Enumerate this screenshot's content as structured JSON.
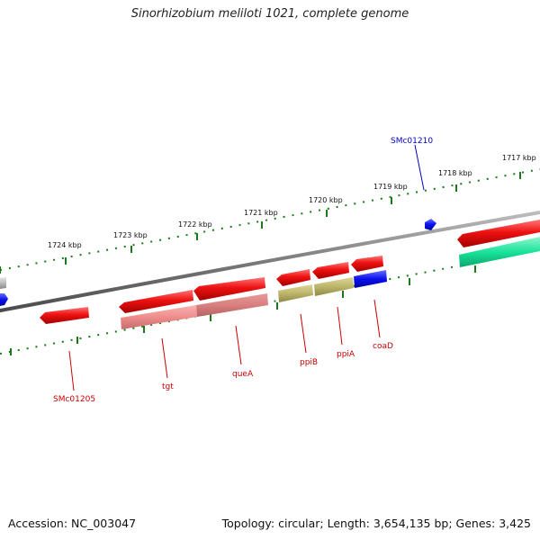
{
  "title": "Sinorhizobium meliloti 1021, complete genome",
  "footer": {
    "accession": "Accession: NC_003047",
    "summary": "Topology: circular; Length: 3,654,135 bp; Genes: 3,425"
  },
  "ruler_labels": [
    "1717 kbp",
    "1718 kbp",
    "1719 kbp",
    "1720 kbp",
    "1721 kbp",
    "1722 kbp",
    "1723 kbp",
    "1724 kbp"
  ],
  "genes": {
    "upper": [
      "SMc01210"
    ],
    "lower": [
      "SMc01205",
      "tgt",
      "queA",
      "ppiB",
      "ppiA",
      "coaD"
    ]
  },
  "colors": {
    "forward_cds": "#ee1111",
    "reverse_cds": "#ee1111",
    "upper_label": "#0000cc",
    "lower_label": "#cc0000",
    "backbone": "#888888",
    "ruler": "#1a7a1a",
    "blue_feature": "#0a10ee",
    "olive_feature": "#bdb56a",
    "pink_feature": "#ef8c8c",
    "teal_feature": "#19e39a",
    "grey_feature": "#bbbbbb"
  }
}
